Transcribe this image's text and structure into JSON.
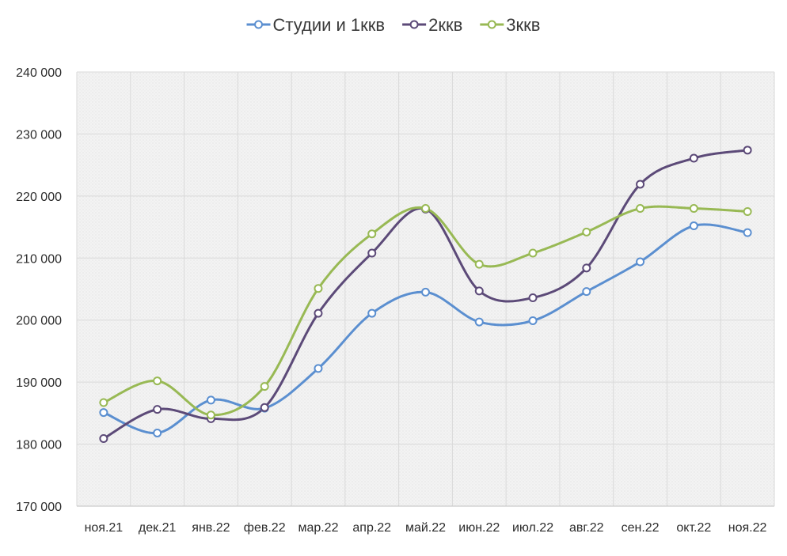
{
  "chart_data": {
    "type": "line",
    "smooth": true,
    "title": "",
    "xlabel": "",
    "ylabel": "",
    "categories": [
      "ноя.21",
      "дек.21",
      "янв.22",
      "фев.22",
      "мар.22",
      "апр.22",
      "май.22",
      "июн.22",
      "июл.22",
      "авг.22",
      "сен.22",
      "окт.22",
      "ноя.22"
    ],
    "ylim": [
      170000,
      240000
    ],
    "ytick_values": [
      170000,
      180000,
      190000,
      200000,
      210000,
      220000,
      230000,
      240000
    ],
    "ytick_labels": [
      "170 000",
      "180 000",
      "190 000",
      "200 000",
      "210 000",
      "220 000",
      "230 000",
      "240 000"
    ],
    "grid": true,
    "legend_position": "top-center",
    "series": [
      {
        "name": "Студии и 1ккв",
        "color": "#5b8fd0",
        "values": [
          185100,
          181800,
          187100,
          185800,
          192200,
          201100,
          204500,
          199700,
          199900,
          204600,
          209400,
          215200,
          214100
        ]
      },
      {
        "name": "2ккв",
        "color": "#5c4a78",
        "values": [
          180900,
          185600,
          184100,
          185900,
          201100,
          210800,
          217900,
          204700,
          203600,
          208400,
          221900,
          226100,
          227400
        ]
      },
      {
        "name": "3ккв",
        "color": "#98b954",
        "values": [
          186700,
          190200,
          184700,
          189300,
          205100,
          213900,
          218000,
          209000,
          210800,
          214200,
          218000,
          218000,
          217500
        ]
      }
    ]
  }
}
